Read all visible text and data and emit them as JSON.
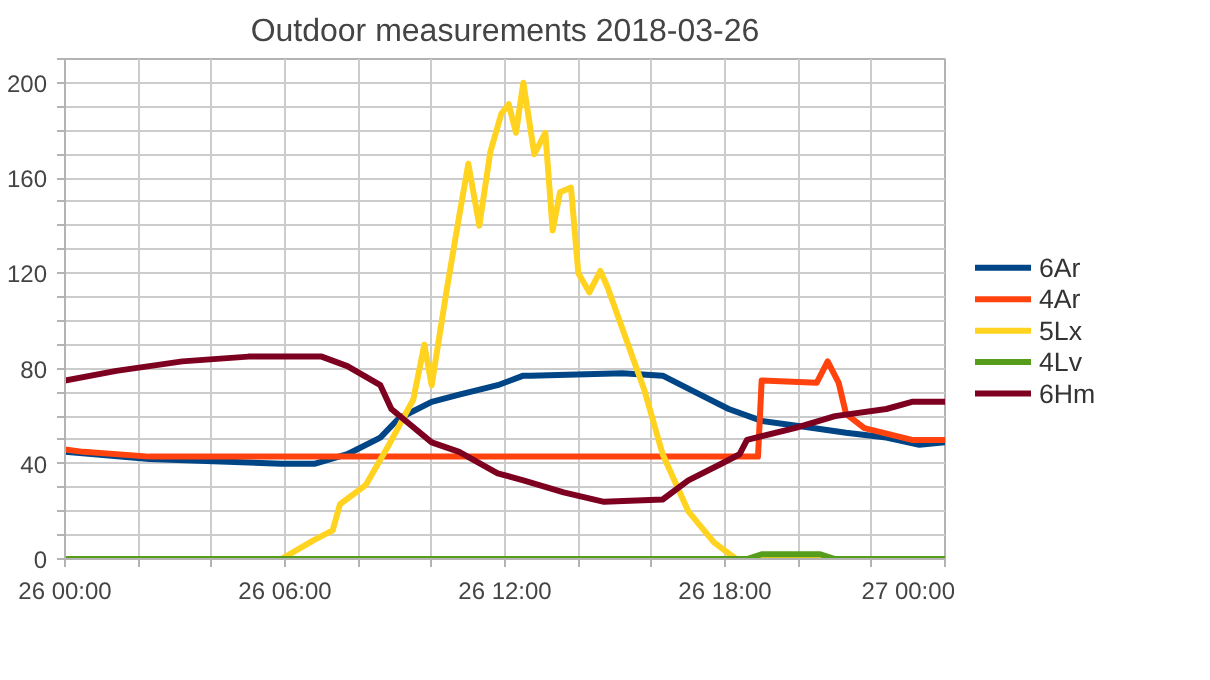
{
  "chart_data": {
    "type": "line",
    "title": "Outdoor measurements 2018-03-26",
    "xlim": [
      "2018-03-26T00:00",
      "2018-03-27T00:00"
    ],
    "ylim": [
      0,
      210
    ],
    "xticks": [
      {
        "value": "2018-03-26T00:00",
        "label": "26 00:00"
      },
      {
        "value": "2018-03-26T02:00",
        "label": null
      },
      {
        "value": "2018-03-26T04:00",
        "label": null
      },
      {
        "value": "2018-03-26T06:00",
        "label": "26 06:00"
      },
      {
        "value": "2018-03-26T08:00",
        "label": null
      },
      {
        "value": "2018-03-26T10:00",
        "label": null
      },
      {
        "value": "2018-03-26T12:00",
        "label": "26 12:00"
      },
      {
        "value": "2018-03-26T14:00",
        "label": null
      },
      {
        "value": "2018-03-26T16:00",
        "label": null
      },
      {
        "value": "2018-03-26T18:00",
        "label": "26 18:00"
      },
      {
        "value": "2018-03-26T20:00",
        "label": null
      },
      {
        "value": "2018-03-26T22:00",
        "label": null
      },
      {
        "value": "2018-03-27T00:00",
        "label": "27 00:00"
      }
    ],
    "yticks": [
      0,
      {
        "value": 10,
        "label": null
      },
      {
        "value": 20,
        "label": null
      },
      {
        "value": 30,
        "label": null
      },
      40,
      {
        "value": 50,
        "label": null
      },
      {
        "value": 60,
        "label": null
      },
      {
        "value": 70,
        "label": null
      },
      80,
      {
        "value": 90,
        "label": null
      },
      {
        "value": 100,
        "label": null
      },
      {
        "value": 110,
        "label": null
      },
      120,
      {
        "value": 130,
        "label": null
      },
      {
        "value": 140,
        "label": null
      },
      {
        "value": 150,
        "label": null
      },
      160,
      {
        "value": 170,
        "label": null
      },
      {
        "value": 180,
        "label": null
      },
      {
        "value": 190,
        "label": null
      },
      200,
      {
        "value": 210,
        "label": null
      }
    ],
    "grid": true,
    "legend": "right",
    "marker": "none",
    "line_style": "solid",
    "series": [
      {
        "name": "6Ar",
        "color": "#004586",
        "x": [
          "2018-03-26T00:00",
          "2018-03-26T02:18",
          "2018-03-26T05:54",
          "2018-03-26T06:48",
          "2018-03-26T07:42",
          "2018-03-26T08:36",
          "2018-03-26T09:06",
          "2018-03-26T10:00",
          "2018-03-26T10:45",
          "2018-03-26T11:48",
          "2018-03-26T12:30",
          "2018-03-26T12:42",
          "2018-03-26T15:12",
          "2018-03-26T16:18",
          "2018-03-26T17:12",
          "2018-03-26T18:06",
          "2018-03-26T19:00",
          "2018-03-26T20:24",
          "2018-03-26T21:18",
          "2018-03-26T22:24",
          "2018-03-26T23:18",
          "2018-03-27T00:00"
        ],
        "values": [
          45,
          42,
          40,
          40,
          44,
          51,
          59,
          66,
          69,
          73,
          77,
          77,
          78,
          77,
          70,
          63,
          58,
          55,
          53,
          51,
          48,
          49
        ]
      },
      {
        "name": "4Ar",
        "color": "#ff420e",
        "x": [
          "2018-03-26T00:00",
          "2018-03-26T00:30",
          "2018-03-26T02:18",
          "2018-03-26T18:54",
          "2018-03-26T19:00",
          "2018-03-26T20:30",
          "2018-03-26T20:48",
          "2018-03-26T21:06",
          "2018-03-26T21:18",
          "2018-03-26T21:48",
          "2018-03-26T23:06",
          "2018-03-27T00:00"
        ],
        "values": [
          46,
          45,
          43,
          43,
          75,
          74,
          83,
          74,
          61,
          55,
          50,
          50
        ]
      },
      {
        "name": "5Lx",
        "color": "#ffd320",
        "x": [
          "2018-03-26T00:00",
          "2018-03-26T05:54",
          "2018-03-26T06:48",
          "2018-03-26T07:18",
          "2018-03-26T07:30",
          "2018-03-26T08:12",
          "2018-03-26T08:48",
          "2018-03-26T09:30",
          "2018-03-26T09:48",
          "2018-03-26T10:00",
          "2018-03-26T10:24",
          "2018-03-26T10:45",
          "2018-03-26T11:00",
          "2018-03-26T11:18",
          "2018-03-26T11:36",
          "2018-03-26T11:54",
          "2018-03-26T12:06",
          "2018-03-26T12:18",
          "2018-03-26T12:30",
          "2018-03-26T12:48",
          "2018-03-26T13:06",
          "2018-03-26T13:18",
          "2018-03-26T13:30",
          "2018-03-26T13:48",
          "2018-03-26T14:00",
          "2018-03-26T14:18",
          "2018-03-26T14:36",
          "2018-03-26T14:48",
          "2018-03-26T15:48",
          "2018-03-26T16:18",
          "2018-03-26T17:00",
          "2018-03-26T17:42",
          "2018-03-26T18:18",
          "2018-03-27T00:00"
        ],
        "values": [
          0,
          0,
          8,
          12,
          23,
          31,
          47,
          67,
          90,
          73,
          112,
          144,
          166,
          140,
          171,
          187,
          191,
          179,
          200,
          170,
          179,
          138,
          154,
          156,
          120,
          112,
          121,
          114,
          71,
          44,
          20,
          7,
          0,
          0
        ]
      },
      {
        "name": "4Lv",
        "color": "#579d1c",
        "x": [
          "2018-03-26T00:00",
          "2018-03-26T18:36",
          "2018-03-26T19:00",
          "2018-03-26T20:36",
          "2018-03-26T21:00",
          "2018-03-27T00:00"
        ],
        "values": [
          0,
          0,
          2,
          2,
          0,
          0
        ]
      },
      {
        "name": "6Hm",
        "color": "#7e0021",
        "x": [
          "2018-03-26T00:00",
          "2018-03-26T01:24",
          "2018-03-26T03:12",
          "2018-03-26T05:00",
          "2018-03-26T07:00",
          "2018-03-26T07:42",
          "2018-03-26T08:36",
          "2018-03-26T08:54",
          "2018-03-26T10:00",
          "2018-03-26T10:45",
          "2018-03-26T11:48",
          "2018-03-26T12:30",
          "2018-03-26T13:36",
          "2018-03-26T14:42",
          "2018-03-26T16:18",
          "2018-03-26T17:00",
          "2018-03-26T17:54",
          "2018-03-26T18:24",
          "2018-03-26T18:36",
          "2018-03-26T19:54",
          "2018-03-26T21:00",
          "2018-03-26T22:24",
          "2018-03-26T23:06",
          "2018-03-27T00:00"
        ],
        "values": [
          75,
          79,
          83,
          85,
          85,
          81,
          73,
          63,
          49,
          45,
          36,
          33,
          28,
          24,
          25,
          33,
          40,
          44,
          50,
          55,
          60,
          63,
          66,
          66
        ]
      }
    ]
  }
}
